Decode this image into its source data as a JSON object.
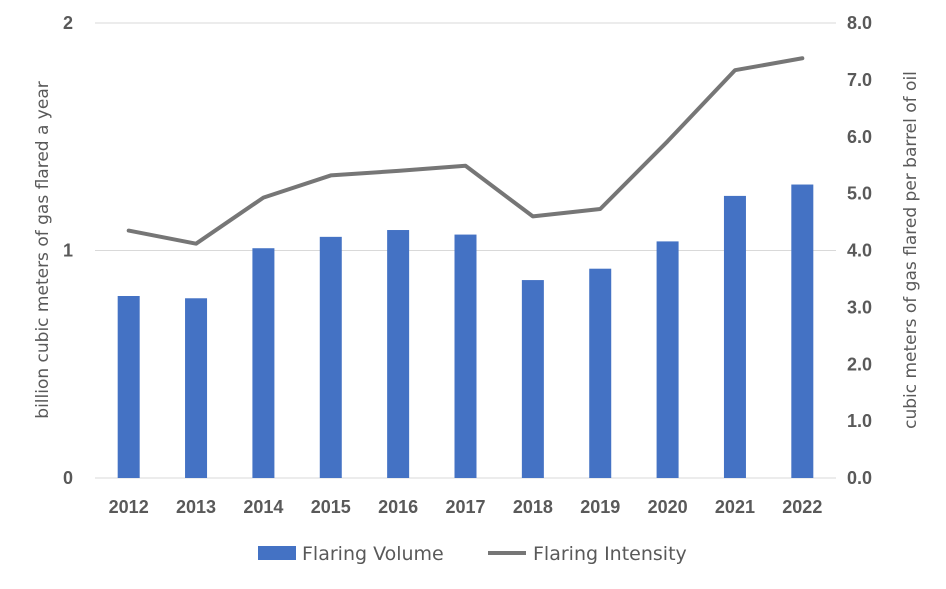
{
  "chart_data": {
    "type": "bar+line",
    "categories": [
      "2012",
      "2013",
      "2014",
      "2015",
      "2016",
      "2017",
      "2018",
      "2019",
      "2020",
      "2021",
      "2022"
    ],
    "series": [
      {
        "name": "Flaring Volume",
        "type": "bar",
        "axis": "left",
        "color": "#4472c4",
        "values": [
          0.8,
          0.79,
          1.01,
          1.06,
          1.09,
          1.07,
          0.87,
          0.92,
          1.04,
          1.24,
          1.29
        ]
      },
      {
        "name": "Flaring Intensity",
        "type": "line",
        "axis": "right",
        "color": "#767676",
        "values": [
          4.35,
          4.12,
          4.93,
          5.32,
          5.4,
          5.49,
          4.6,
          4.73,
          5.92,
          7.17,
          7.38
        ]
      }
    ],
    "y_left": {
      "label": "billion cubic meters of gas flared a year",
      "ylim": [
        0,
        2
      ],
      "ticks": [
        "0",
        "1",
        "2"
      ]
    },
    "y_right": {
      "label": "cubic meters of gas flared per barrel of oil",
      "ylim": [
        0,
        8
      ],
      "ticks": [
        "0.0",
        "1.0",
        "2.0",
        "3.0",
        "4.0",
        "5.0",
        "6.0",
        "7.0",
        "8.0"
      ]
    },
    "grid": true,
    "legend": "bottom-center"
  }
}
